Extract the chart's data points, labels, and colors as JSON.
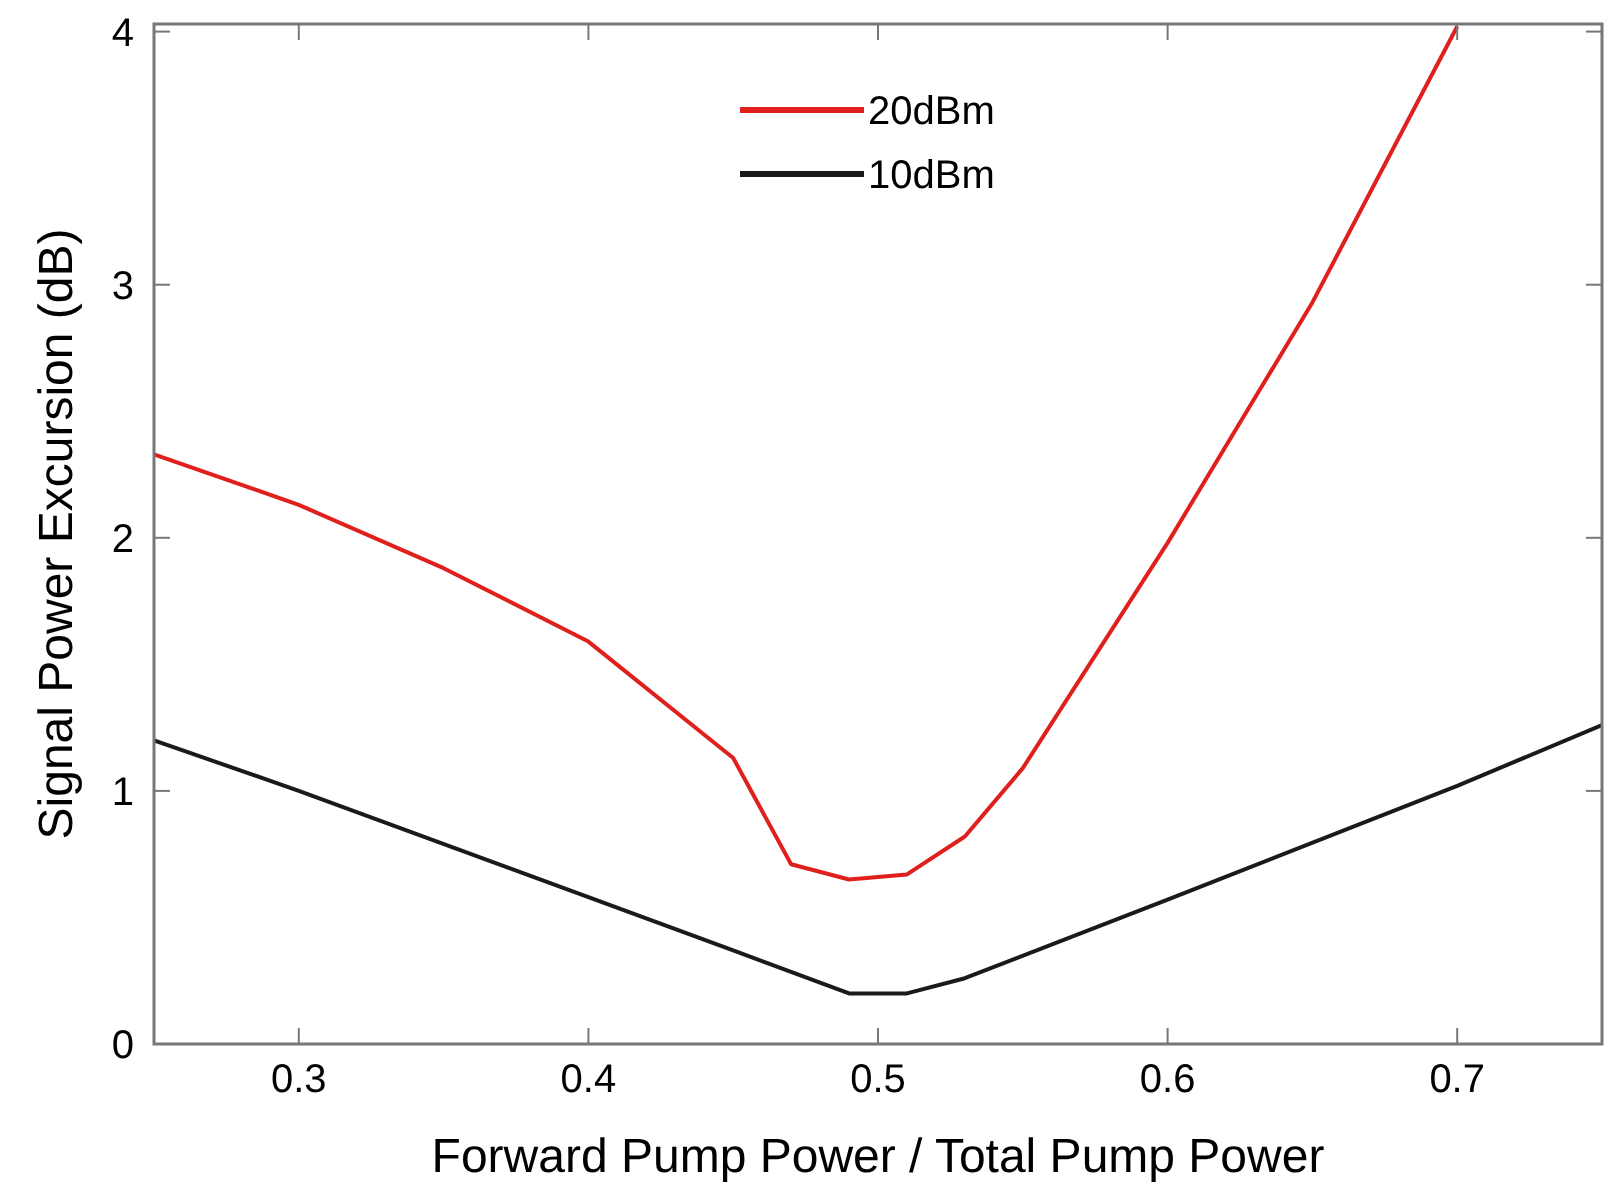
{
  "chart_data": {
    "type": "line",
    "xlabel": "Forward Pump Power / Total Pump Power",
    "ylabel": "Signal Power Excursion (dB)",
    "xlim": [
      0.25,
      0.75
    ],
    "xticks": [
      0.3,
      0.4,
      0.5,
      0.6,
      0.7
    ],
    "ylim": [
      0,
      4.03
    ],
    "yticks": [
      0,
      1,
      2,
      3,
      4
    ],
    "grid": false,
    "legend": "top",
    "series": [
      {
        "name": "20dBm",
        "color": "#e0201c",
        "x": [
          0.25,
          0.3,
          0.35,
          0.4,
          0.45,
          0.47,
          0.49,
          0.51,
          0.53,
          0.55,
          0.6,
          0.65,
          0.7
        ],
        "values": [
          2.33,
          2.13,
          1.88,
          1.59,
          1.13,
          0.71,
          0.65,
          0.67,
          0.82,
          1.09,
          1.98,
          2.93,
          4.02
        ]
      },
      {
        "name": "10dBm",
        "color": "#1a1a1a",
        "x": [
          0.25,
          0.3,
          0.4,
          0.45,
          0.49,
          0.51,
          0.53,
          0.6,
          0.7,
          0.75
        ],
        "values": [
          1.2,
          1.0,
          0.58,
          0.37,
          0.2,
          0.2,
          0.26,
          0.57,
          1.02,
          1.26
        ]
      }
    ]
  }
}
